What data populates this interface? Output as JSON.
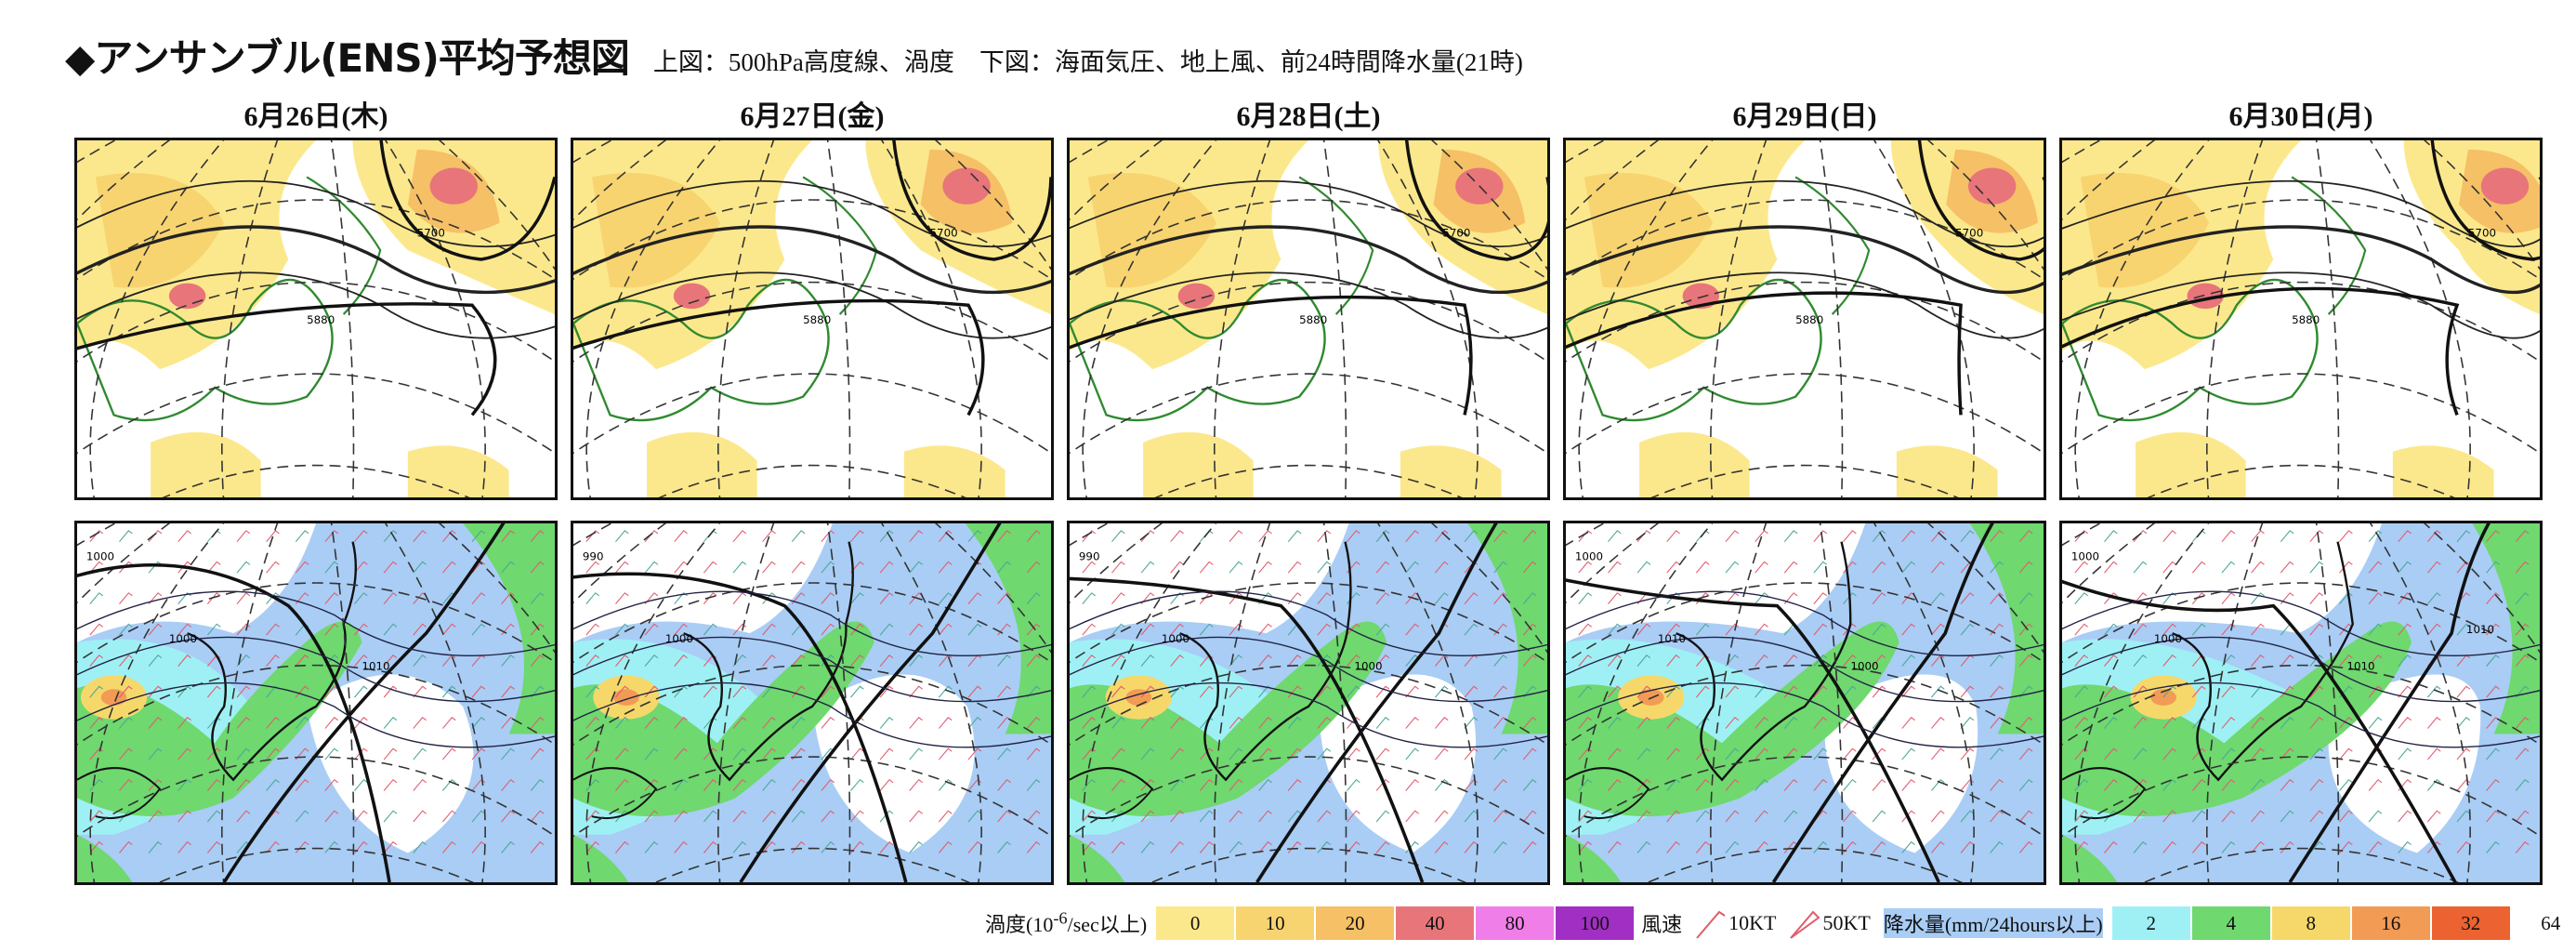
{
  "title": "◆アンサンブル(ENS)平均予想図",
  "subtitle": "上図：500hPa高度線、渦度　下図：海面気圧、地上風、前24時間降水量(21時)",
  "colors": {
    "vort": [
      "#fce88c",
      "#f8d470",
      "#f6c066",
      "#e8757a",
      "#f07ee8",
      "#a12fc4"
    ],
    "precip": [
      "#a9cdf5",
      "#9ff0f4",
      "#6fd86f",
      "#f6d86a",
      "#f29b55",
      "#ec6230"
    ],
    "land_outline_upper": "#2f8a2f",
    "coast_lower": "#111111"
  },
  "panels": [
    {
      "date": "6月26日(木)",
      "upper": {
        "h5700": "5700",
        "h5880": "5880"
      },
      "lower": {
        "isobars": [
          "1000",
          "1000",
          "1010"
        ]
      }
    },
    {
      "date": "6月27日(金)",
      "upper": {
        "h5700": "5700",
        "h5880": "5880"
      },
      "lower": {
        "isobars": [
          "990",
          "1000"
        ]
      }
    },
    {
      "date": "6月28日(土)",
      "upper": {
        "h5700": "5700",
        "h5880": "5880"
      },
      "lower": {
        "isobars": [
          "990",
          "1000",
          "1000"
        ]
      }
    },
    {
      "date": "6月29日(日)",
      "upper": {
        "h5700": "5700",
        "h5880": "5880"
      },
      "lower": {
        "isobars": [
          "1000",
          "1010",
          "1000"
        ]
      }
    },
    {
      "date": "6月30日(月)",
      "upper": {
        "h5700": "5700",
        "h5880": "5880"
      },
      "lower": {
        "isobars": [
          "1000",
          "1000",
          "1010",
          "1010"
        ]
      }
    }
  ],
  "legend": {
    "vorticity_label_pre": "渦度(10",
    "vorticity_label_sup": "-6",
    "vorticity_label_post": "/sec以上)",
    "vorticity_levels": [
      "0",
      "10",
      "20",
      "40",
      "80",
      "100"
    ],
    "wind_label": "風速",
    "wind_10": "10KT",
    "wind_50": "50KT",
    "precip_label": "降水量(mm/24hours以上)",
    "precip_levels": [
      "2",
      "4",
      "8",
      "16",
      "32",
      "64"
    ]
  }
}
